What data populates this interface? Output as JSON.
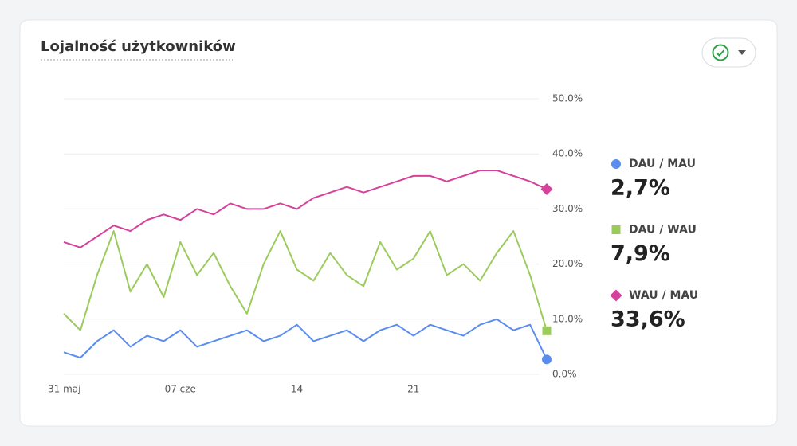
{
  "chart_data": {
    "type": "line",
    "title": "Lojalność użytkowników",
    "categories": [
      "31 maj",
      null,
      null,
      null,
      null,
      null,
      null,
      "07 cze",
      null,
      null,
      null,
      null,
      null,
      null,
      "14",
      null,
      null,
      null,
      null,
      null,
      null,
      "21",
      null,
      null,
      null,
      null,
      null,
      null,
      null,
      null
    ],
    "ylim": [
      0,
      50
    ],
    "yticks": [
      {
        "value": 0,
        "label": "0.0%"
      },
      {
        "value": 10,
        "label": "10.0%"
      },
      {
        "value": 20,
        "label": "20.0%"
      },
      {
        "value": 30,
        "label": "30.0%"
      },
      {
        "value": 40,
        "label": "40.0%"
      },
      {
        "value": 50,
        "label": "50.0%"
      }
    ],
    "grid": true,
    "series": [
      {
        "name": "DAU / MAU",
        "color": "#5b8def",
        "marker": "circle",
        "values": [
          4,
          3,
          6,
          8,
          5,
          7,
          6,
          8,
          5,
          6,
          7,
          8,
          6,
          7,
          9,
          6,
          7,
          8,
          6,
          8,
          9,
          7,
          9,
          8,
          7,
          9,
          10,
          8,
          9,
          2.7
        ],
        "value_labels": [
          null,
          null,
          null,
          null,
          null,
          null,
          null,
          null,
          null,
          null,
          null,
          null,
          null,
          null,
          null,
          null,
          null,
          null,
          null,
          null,
          null,
          null,
          null,
          null,
          null,
          null,
          null,
          null,
          null,
          "2,7%"
        ]
      },
      {
        "name": "DAU / WAU",
        "color": "#9bcb5b",
        "marker": "square",
        "values": [
          11,
          8,
          18,
          26,
          15,
          20,
          14,
          24,
          18,
          22,
          16,
          11,
          20,
          26,
          19,
          17,
          22,
          18,
          16,
          24,
          19,
          21,
          26,
          18,
          20,
          17,
          22,
          26,
          18,
          7.9
        ],
        "value_labels": [
          null,
          null,
          null,
          null,
          null,
          null,
          null,
          null,
          null,
          null,
          null,
          null,
          null,
          null,
          null,
          null,
          null,
          null,
          null,
          null,
          null,
          null,
          null,
          null,
          null,
          null,
          null,
          null,
          null,
          "7,9%"
        ]
      },
      {
        "name": "WAU / MAU",
        "color": "#d6419b",
        "marker": "diamond",
        "values": [
          24,
          23,
          25,
          27,
          26,
          28,
          29,
          28,
          30,
          29,
          31,
          30,
          30,
          31,
          30,
          32,
          33,
          34,
          33,
          34,
          35,
          36,
          36,
          35,
          36,
          37,
          37,
          36,
          35,
          33.6
        ],
        "value_labels": [
          null,
          null,
          null,
          null,
          null,
          null,
          null,
          null,
          null,
          null,
          null,
          null,
          null,
          null,
          null,
          null,
          null,
          null,
          null,
          null,
          null,
          null,
          null,
          null,
          null,
          null,
          null,
          null,
          null,
          "33,6%"
        ]
      }
    ]
  }
}
